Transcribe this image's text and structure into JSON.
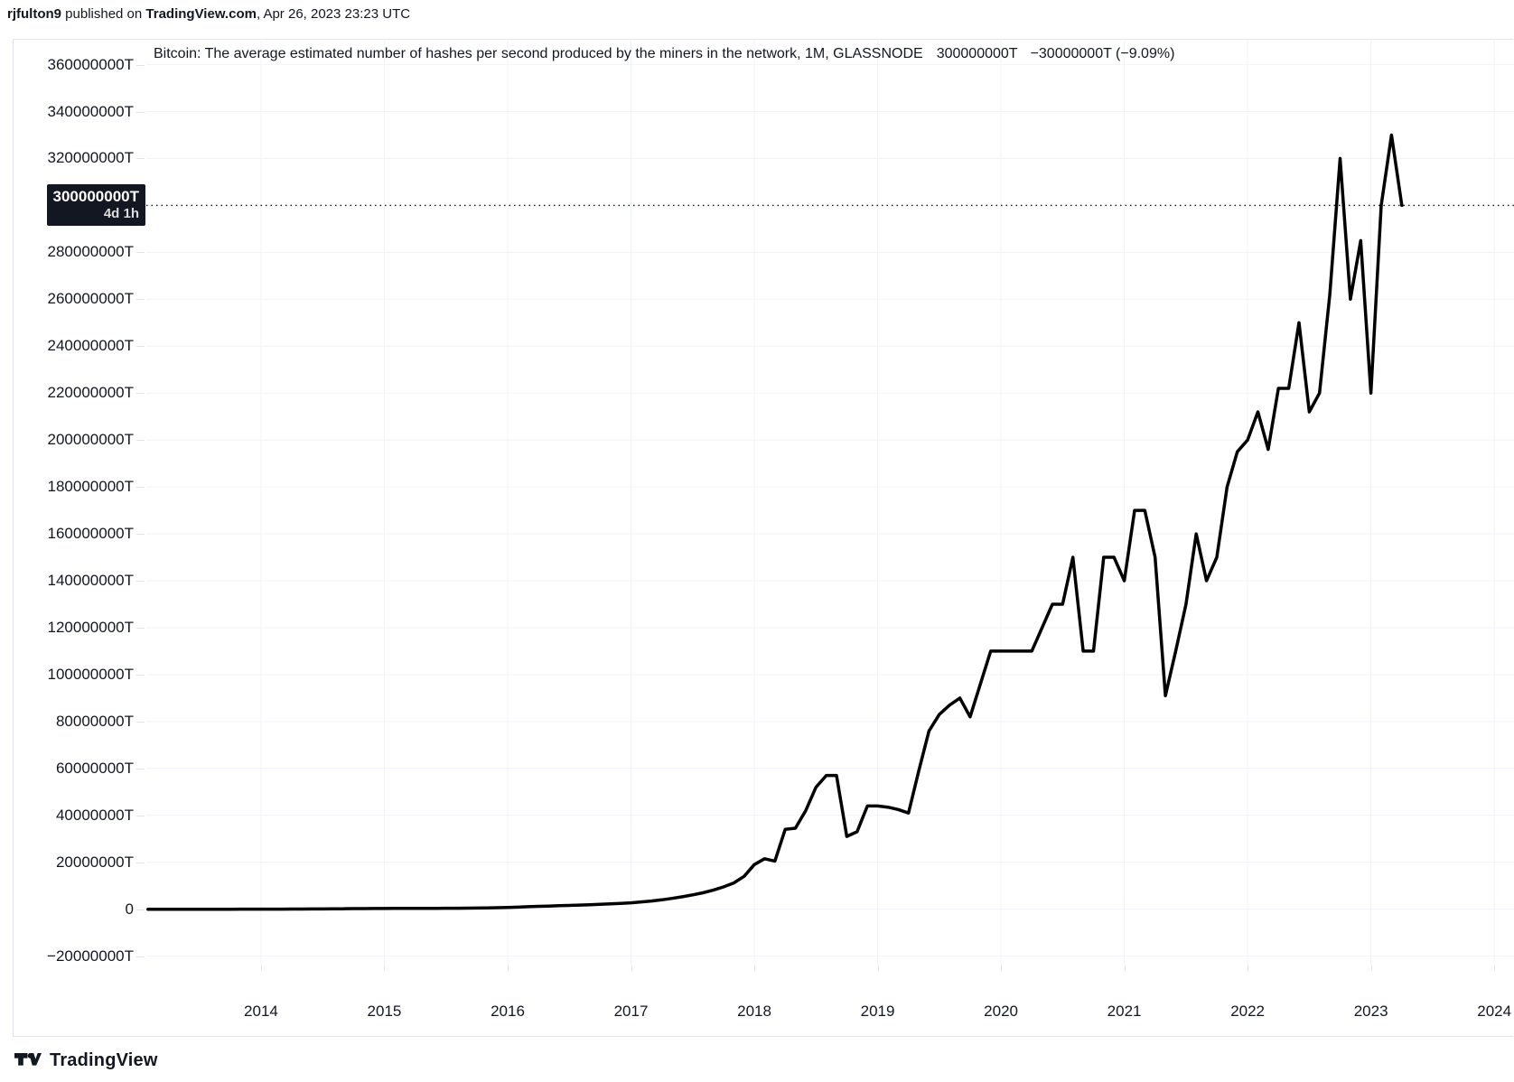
{
  "attribution": {
    "user": "rjfulton9",
    "published_on": " published on ",
    "site": "TradingView.com",
    "datetime": ", Apr 26, 2023 23:23 UTC"
  },
  "legend": {
    "description": "Bitcoin: The average estimated number of hashes per second produced by the miners in the network, 1M, GLASSNODE",
    "last_value": "300000000T",
    "change": "−30000000T (−9.09%)"
  },
  "price_label": {
    "value": "300000000T",
    "countdown": "4d 1h"
  },
  "footer": {
    "logo_text": "TradingView"
  },
  "chart_data": {
    "type": "line",
    "title": "Bitcoin: The average estimated number of hashes per second produced by the miners in the network",
    "interval": "1M",
    "source": "GLASSNODE",
    "unit": "T (terahashes per second)",
    "grid": true,
    "legend_position": "top-left",
    "xlim": [
      2013.07,
      2024.16
    ],
    "ylim": [
      -24000000,
      371000000
    ],
    "x_start": 2013.0833,
    "x_step": 0.0833333,
    "colors": {
      "line": "#000000",
      "grid": "#f0f3fa",
      "price_line": "#131722",
      "text": "#131722",
      "price_label_bg": "#131722",
      "border": "#e0e3eb"
    },
    "price_line": {
      "value": 300000000,
      "label": "300000000T",
      "countdown": "4d 1h"
    },
    "y_ticks": [
      {
        "value": 360000000,
        "label": "360000000T"
      },
      {
        "value": 340000000,
        "label": "340000000T"
      },
      {
        "value": 320000000,
        "label": "320000000T"
      },
      {
        "value": 300000000,
        "label": "300000000T"
      },
      {
        "value": 280000000,
        "label": "280000000T"
      },
      {
        "value": 260000000,
        "label": "260000000T"
      },
      {
        "value": 240000000,
        "label": "240000000T"
      },
      {
        "value": 220000000,
        "label": "220000000T"
      },
      {
        "value": 200000000,
        "label": "200000000T"
      },
      {
        "value": 180000000,
        "label": "180000000T"
      },
      {
        "value": 160000000,
        "label": "160000000T"
      },
      {
        "value": 140000000,
        "label": "140000000T"
      },
      {
        "value": 120000000,
        "label": "120000000T"
      },
      {
        "value": 100000000,
        "label": "100000000T"
      },
      {
        "value": 80000000,
        "label": "80000000T"
      },
      {
        "value": 60000000,
        "label": "60000000T"
      },
      {
        "value": 40000000,
        "label": "40000000T"
      },
      {
        "value": 20000000,
        "label": "20000000T"
      },
      {
        "value": 0,
        "label": "0"
      },
      {
        "value": -20000000,
        "label": "−20000000T"
      }
    ],
    "x_ticks": [
      {
        "year": 2014,
        "label": "2014"
      },
      {
        "year": 2015,
        "label": "2015"
      },
      {
        "year": 2016,
        "label": "2016"
      },
      {
        "year": 2017,
        "label": "2017"
      },
      {
        "year": 2018,
        "label": "2018"
      },
      {
        "year": 2019,
        "label": "2019"
      },
      {
        "year": 2020,
        "label": "2020"
      },
      {
        "year": 2021,
        "label": "2021"
      },
      {
        "year": 2022,
        "label": "2022"
      },
      {
        "year": 2023,
        "label": "2023"
      },
      {
        "year": 2024,
        "label": "2024"
      }
    ],
    "series_start_month": "2013-02",
    "values": [
      60,
      100,
      150,
      250,
      400,
      700,
      1200,
      2000,
      3500,
      5000,
      7500,
      12000,
      20000,
      32000,
      48000,
      65000,
      85000,
      110000,
      150000,
      195000,
      240000,
      270000,
      295000,
      310000,
      318000,
      330000,
      342000,
      355000,
      375000,
      395000,
      415000,
      445000,
      475000,
      540000,
      640000,
      740000,
      880000,
      1050000,
      1200000,
      1350000,
      1480000,
      1600000,
      1750000,
      1900000,
      2050000,
      2250000,
      2450000,
      2700000,
      3100000,
      3500000,
      4000000,
      4600000,
      5300000,
      6100000,
      7000000,
      8100000,
      9500000,
      11200000,
      14000000,
      19000000,
      21500000,
      20500000,
      34000000,
      34500000,
      42000000,
      52000000,
      57000000,
      57000000,
      31000000,
      33000000,
      44000000,
      44000000,
      43500000,
      42500000,
      41000000,
      59000000,
      76000000,
      83000000,
      87000000,
      90000000,
      82000000,
      96000000,
      110000000,
      110000000,
      110000000,
      110000000,
      110000000,
      120000000,
      130000000,
      130000000,
      150000000,
      110000000,
      110000000,
      150000000,
      150000000,
      140000000,
      170000000,
      170000000,
      150000000,
      91000000,
      110000000,
      130000000,
      160000000,
      140000000,
      150000000,
      180000000,
      195000000,
      200000000,
      212000000,
      196000000,
      222000000,
      222000000,
      250000000,
      212000000,
      220000000,
      262000000,
      320000000,
      260000000,
      285000000,
      220000000,
      300000000,
      330000000,
      300000000
    ]
  }
}
